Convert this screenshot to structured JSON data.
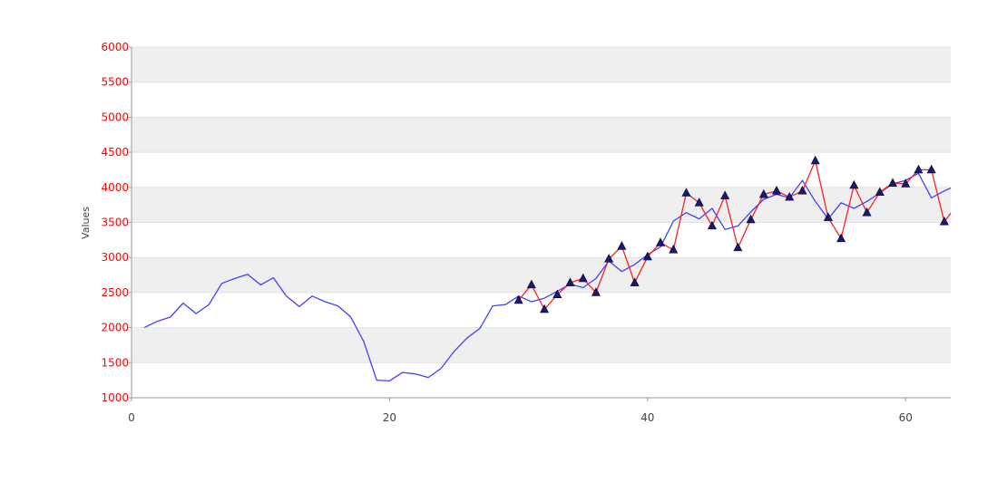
{
  "chart_data": {
    "type": "line",
    "xlabel": "",
    "ylabel": "Values",
    "xlim": [
      0,
      63.5
    ],
    "ylim": [
      1000,
      6000
    ],
    "x_ticks": [
      "0",
      "20",
      "40",
      "60"
    ],
    "y_ticks": [
      "6000",
      "5500",
      "5000",
      "4500",
      "4000",
      "3500",
      "3000",
      "2500",
      "2000",
      "1500",
      "1000"
    ],
    "grid": "horizontal alternating bands",
    "colors": {
      "series_blue": "#4040ff",
      "series_red": "#ff2020",
      "marker": "#1a1a6e",
      "band": "#efefef",
      "tick_y": "#ff0000",
      "tick_x": "#444444"
    },
    "series": [
      {
        "color": "#4040ff",
        "x": [
          1,
          2,
          3,
          4,
          5,
          6,
          7,
          8,
          9,
          10,
          11,
          12,
          13,
          14,
          15,
          16,
          17,
          18,
          19,
          20,
          21,
          22,
          23,
          24,
          25,
          26,
          27,
          28,
          29,
          30,
          31,
          32,
          33,
          34,
          35,
          36,
          37,
          38,
          39,
          40,
          41,
          42,
          43,
          44,
          45,
          46,
          47,
          48,
          49,
          50,
          51,
          52,
          53,
          54,
          55,
          56,
          57,
          58,
          59,
          60,
          61,
          62,
          63,
          64
        ],
        "y": [
          2000,
          2090,
          2150,
          2350,
          2200,
          2330,
          2630,
          2700,
          2760,
          2610,
          2710,
          2450,
          2300,
          2450,
          2370,
          2310,
          2150,
          1800,
          1250,
          1240,
          1360,
          1340,
          1290,
          1420,
          1660,
          1850,
          1990,
          2310,
          2330,
          2450,
          2370,
          2420,
          2520,
          2620,
          2570,
          2700,
          2950,
          2800,
          2900,
          3040,
          3150,
          3520,
          3640,
          3550,
          3700,
          3400,
          3450,
          3650,
          3830,
          3900,
          3850,
          4100,
          3800,
          3550,
          3780,
          3700,
          3800,
          3920,
          4050,
          4100,
          4200,
          3850,
          3950,
          4030
        ]
      },
      {
        "color": "#ff2020",
        "marker": "triangle",
        "x": [
          30,
          31,
          32,
          33,
          34,
          35,
          36,
          37,
          38,
          39,
          40,
          41,
          42,
          43,
          44,
          45,
          46,
          47,
          48,
          49,
          50,
          51,
          52,
          53,
          54,
          55,
          56,
          57,
          58,
          59,
          60,
          61,
          62,
          63,
          64
        ],
        "y": [
          2390,
          2610,
          2260,
          2470,
          2640,
          2700,
          2500,
          2980,
          3160,
          2640,
          3010,
          3210,
          3110,
          3920,
          3780,
          3450,
          3880,
          3140,
          3540,
          3900,
          3950,
          3860,
          3950,
          4380,
          3570,
          3270,
          4030,
          3640,
          3930,
          4060,
          4050,
          4250,
          4250,
          3510,
          3750
        ]
      }
    ]
  }
}
